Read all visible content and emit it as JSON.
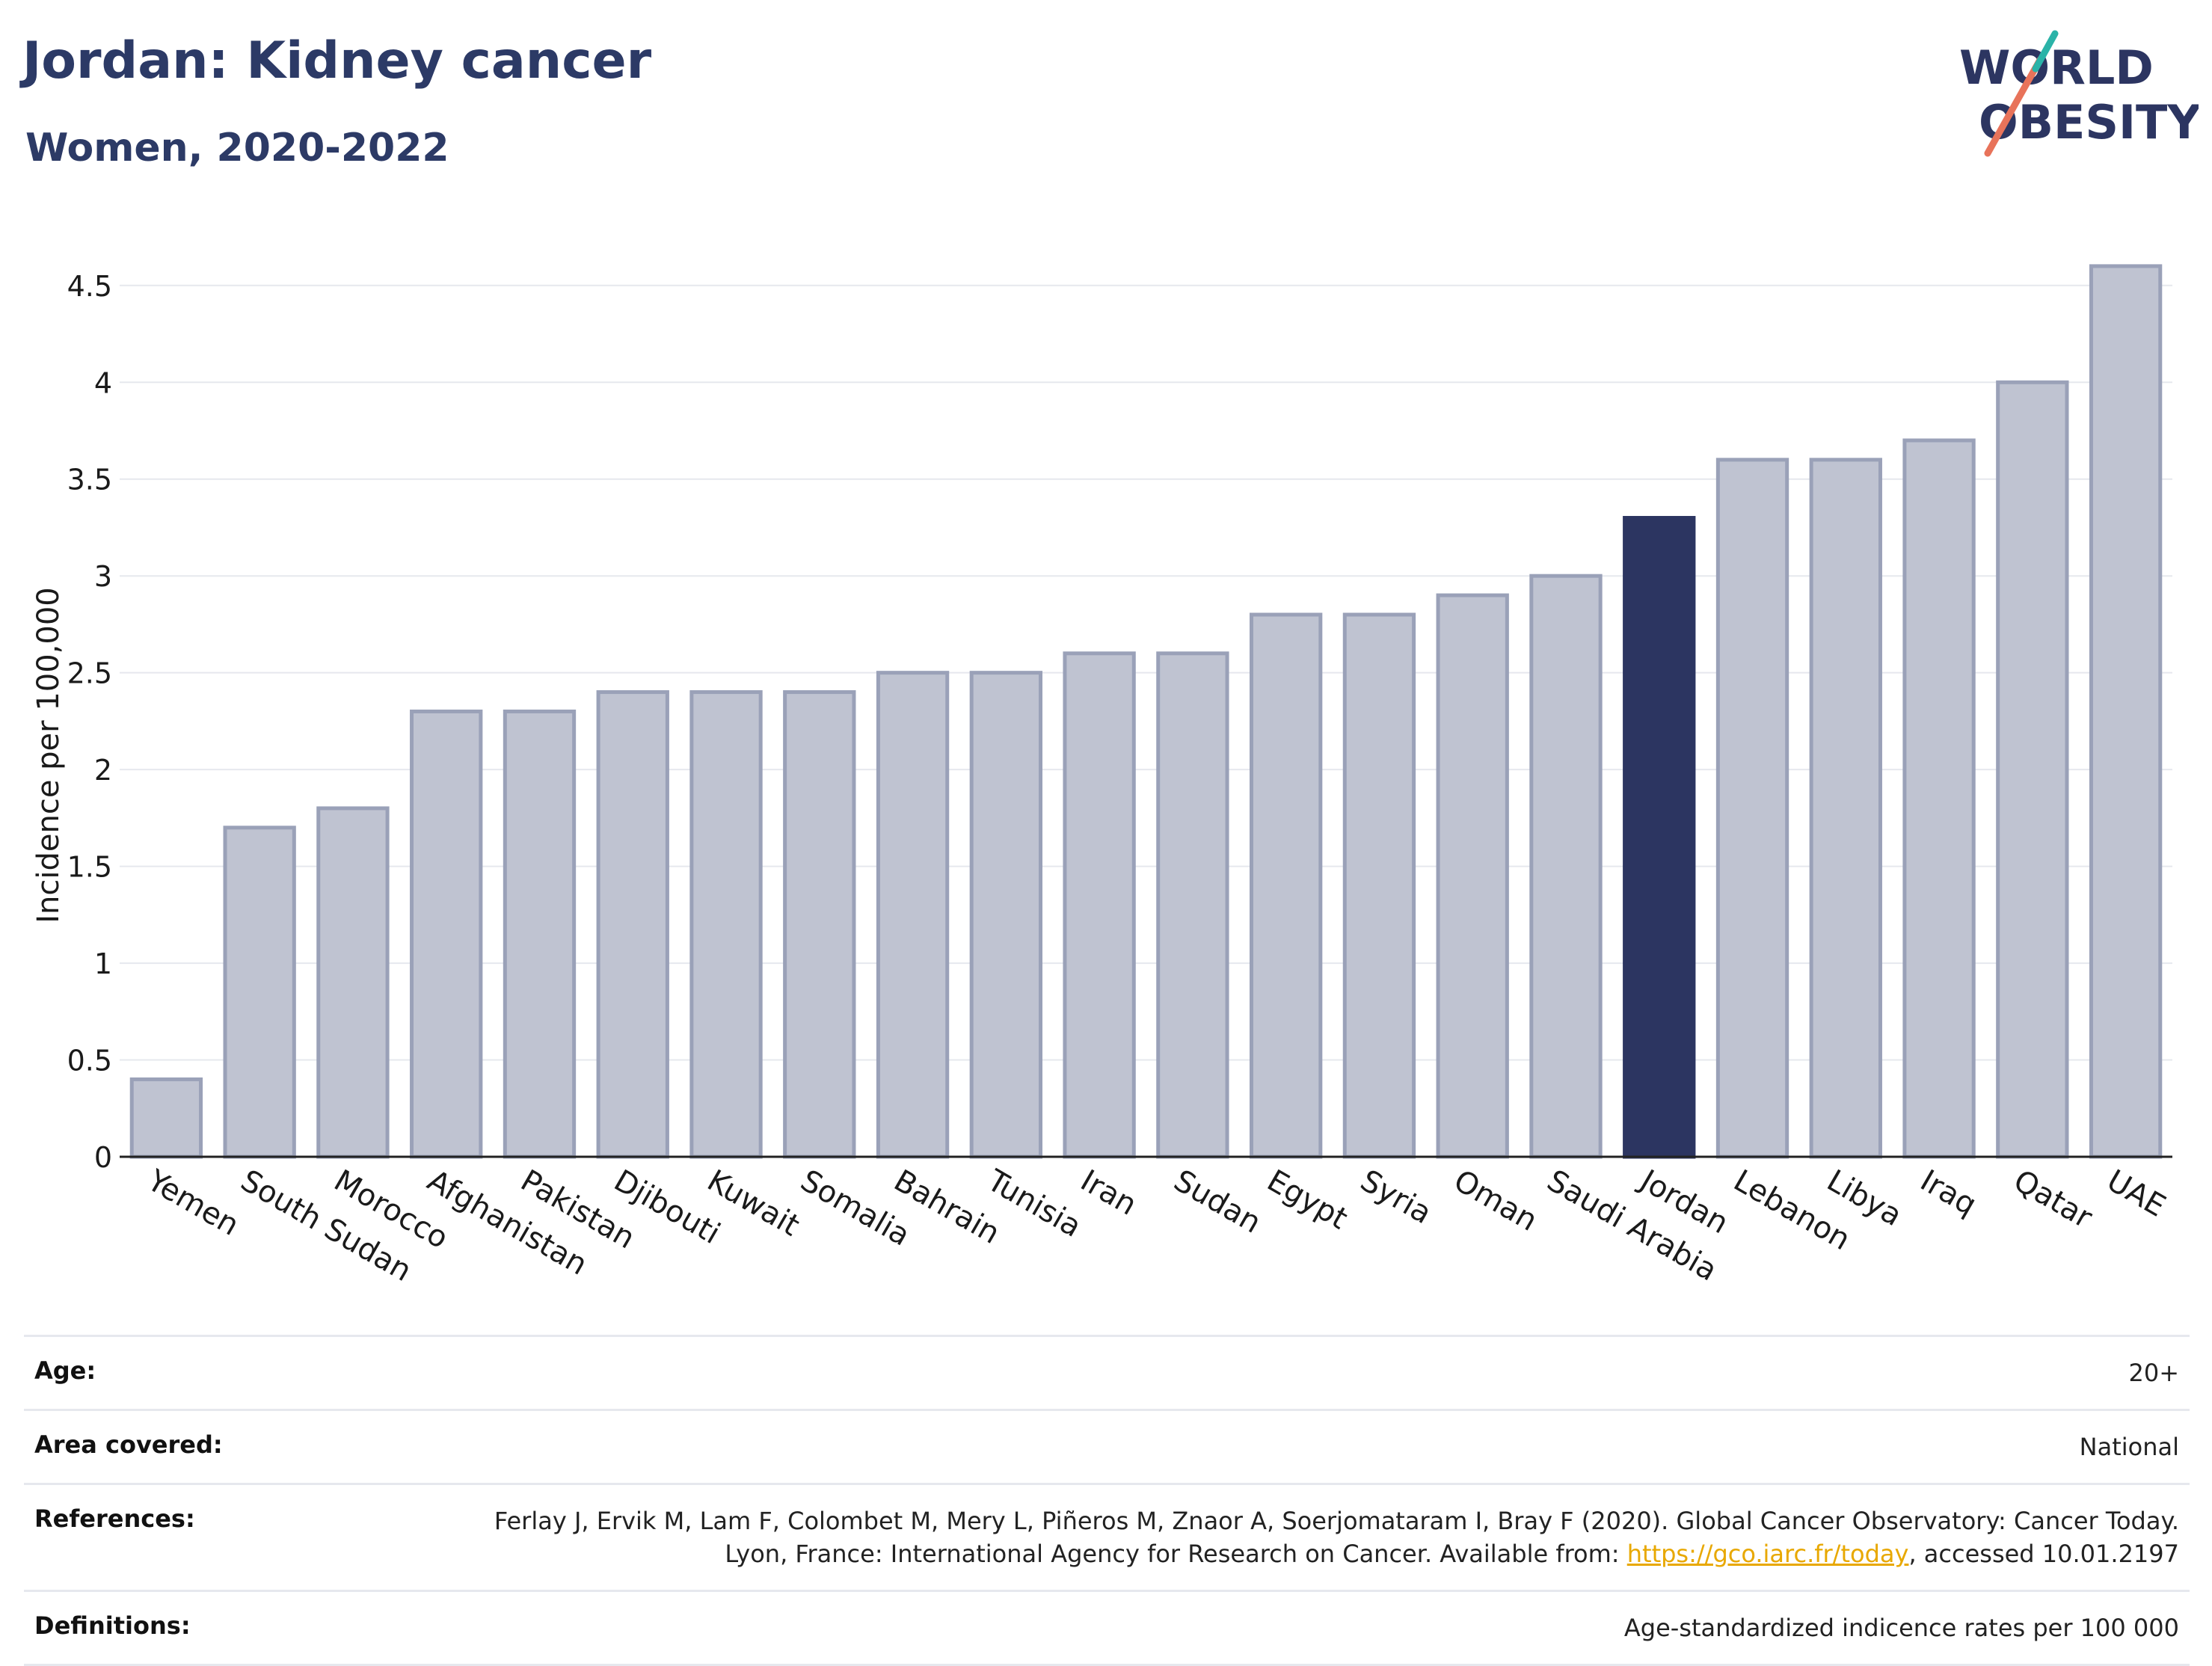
{
  "header": {
    "title": "Jordan: Kidney cancer",
    "subtitle": "Women, 2020-2022"
  },
  "logo": {
    "line1": "WORLD",
    "line2": "OBESITY"
  },
  "chart_data": {
    "type": "bar",
    "ylabel": "Incidence per 100,000",
    "ylim": [
      0,
      4.7
    ],
    "yticks": [
      0,
      0.5,
      1,
      1.5,
      2,
      2.5,
      3,
      3.5,
      4,
      4.5
    ],
    "ytick_labels": [
      "0",
      "0.5",
      "1",
      "1.5",
      "2",
      "2.5",
      "3",
      "3.5",
      "4",
      "4.5"
    ],
    "grid": true,
    "highlight": "Jordan",
    "colors": {
      "bar": "#bfc3d1",
      "bar_edge": "#9aa1b8",
      "highlight": "#2c3561",
      "grid": "#e6e8ee"
    },
    "categories": [
      "Yemen",
      "South Sudan",
      "Morocco",
      "Afghanistan",
      "Pakistan",
      "Djibouti",
      "Kuwait",
      "Somalia",
      "Bahrain",
      "Tunisia",
      "Iran",
      "Sudan",
      "Egypt",
      "Syria",
      "Oman",
      "Saudi Arabia",
      "Jordan",
      "Lebanon",
      "Libya",
      "Iraq",
      "Qatar",
      "UAE"
    ],
    "values": [
      0.4,
      1.7,
      1.8,
      2.3,
      2.3,
      2.4,
      2.4,
      2.4,
      2.5,
      2.5,
      2.6,
      2.6,
      2.8,
      2.8,
      2.9,
      3.0,
      3.3,
      3.6,
      3.6,
      3.7,
      4.0,
      4.6
    ]
  },
  "footer": {
    "age_label": "Age:",
    "age_value": "20+",
    "area_label": "Area covered:",
    "area_value": "National",
    "references_label": "References:",
    "references_text": "Ferlay J, Ervik M, Lam F, Colombet M, Mery L, Piñeros M, Znaor A, Soerjomataram I, Bray F (2020). Global Cancer Observatory: Cancer Today. Lyon, France: International Agency for Research on Cancer. Available from: ",
    "references_link": "https://gco.iarc.fr/today",
    "references_tail": ", accessed 10.01.2197",
    "definitions_label": "Definitions:",
    "definitions_value": "Age-standardized indicence rates per 100 000"
  }
}
